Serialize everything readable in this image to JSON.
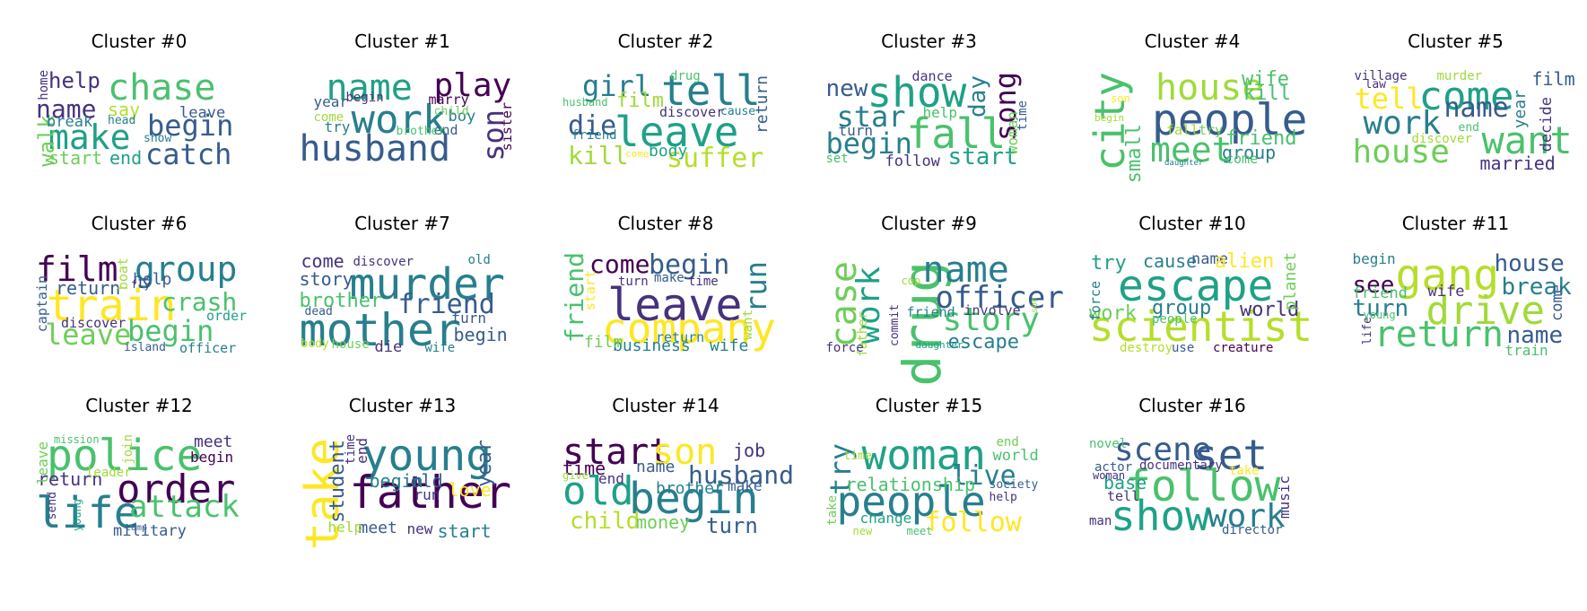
{
  "palette": [
    "#440154",
    "#46327e",
    "#365c8d",
    "#277f8e",
    "#1fa187",
    "#4ac16d",
    "#a0da39",
    "#fde725"
  ],
  "clusters": [
    {
      "title": "Cluster #0",
      "words": [
        {
          "t": "chase",
          "c": "#4ac16d"
        },
        {
          "t": "make",
          "c": "#1fa187"
        },
        {
          "t": "name",
          "c": "#46327e"
        },
        {
          "t": "begin",
          "c": "#365c8d"
        },
        {
          "t": "catch",
          "c": "#365c8d"
        },
        {
          "t": "help",
          "c": "#46327e"
        },
        {
          "t": "walk",
          "c": "#6ece58"
        },
        {
          "t": "say",
          "c": "#b5de2b"
        },
        {
          "t": "break",
          "c": "#277f8e"
        },
        {
          "t": "start",
          "c": "#6ece58"
        },
        {
          "t": "end",
          "c": "#1fa187"
        },
        {
          "t": "leave",
          "c": "#365c8d"
        },
        {
          "t": "head",
          "c": "#277f8e"
        },
        {
          "t": "show",
          "c": "#277f8e"
        },
        {
          "t": "home",
          "c": "#46327e"
        }
      ]
    },
    {
      "title": "Cluster #1",
      "words": [
        {
          "t": "name",
          "c": "#1fa187"
        },
        {
          "t": "work",
          "c": "#277f8e"
        },
        {
          "t": "husband",
          "c": "#365c8d"
        },
        {
          "t": "play",
          "c": "#440154"
        },
        {
          "t": "son",
          "c": "#46327e"
        },
        {
          "t": "marry",
          "c": "#440154"
        },
        {
          "t": "boy",
          "c": "#277f8e"
        },
        {
          "t": "year",
          "c": "#365c8d"
        },
        {
          "t": "come",
          "c": "#a0da39"
        },
        {
          "t": "try",
          "c": "#277f8e"
        },
        {
          "t": "begin",
          "c": "#46327e"
        },
        {
          "t": "end",
          "c": "#365c8d"
        },
        {
          "t": "child",
          "c": "#6ece58"
        },
        {
          "t": "brother",
          "c": "#4ac16d"
        },
        {
          "t": "sister",
          "c": "#440154"
        }
      ]
    },
    {
      "title": "Cluster #2",
      "words": [
        {
          "t": "tell",
          "c": "#277f8e"
        },
        {
          "t": "leave",
          "c": "#1fa187"
        },
        {
          "t": "girl",
          "c": "#277f8e"
        },
        {
          "t": "die",
          "c": "#365c8d"
        },
        {
          "t": "kill",
          "c": "#a0da39"
        },
        {
          "t": "suffer",
          "c": "#b5de2b"
        },
        {
          "t": "film",
          "c": "#a0da39"
        },
        {
          "t": "body",
          "c": "#1fa187"
        },
        {
          "t": "drug",
          "c": "#4ac16d"
        },
        {
          "t": "discover",
          "c": "#46327e"
        },
        {
          "t": "return",
          "c": "#365c8d"
        },
        {
          "t": "friend",
          "c": "#277f8e"
        },
        {
          "t": "husband",
          "c": "#4ac16d"
        },
        {
          "t": "cause",
          "c": "#277f8e"
        },
        {
          "t": "come",
          "c": "#fde725"
        }
      ]
    },
    {
      "title": "Cluster #3",
      "words": [
        {
          "t": "show",
          "c": "#1fa187"
        },
        {
          "t": "fall",
          "c": "#4ac16d"
        },
        {
          "t": "star",
          "c": "#277f8e"
        },
        {
          "t": "begin",
          "c": "#277f8e"
        },
        {
          "t": "start",
          "c": "#1fa187"
        },
        {
          "t": "song",
          "c": "#440154"
        },
        {
          "t": "day",
          "c": "#277f8e"
        },
        {
          "t": "new",
          "c": "#365c8d"
        },
        {
          "t": "follow",
          "c": "#46327e"
        },
        {
          "t": "turn",
          "c": "#365c8d"
        },
        {
          "t": "help",
          "c": "#4ac16d"
        },
        {
          "t": "dance",
          "c": "#46327e"
        },
        {
          "t": "set",
          "c": "#4ac16d"
        },
        {
          "t": "woman",
          "c": "#6ece58"
        },
        {
          "t": "time",
          "c": "#365c8d"
        }
      ]
    },
    {
      "title": "Cluster #4",
      "words": [
        {
          "t": "people",
          "c": "#365c8d"
        },
        {
          "t": "house",
          "c": "#a0da39"
        },
        {
          "t": "city",
          "c": "#4ac16d"
        },
        {
          "t": "meet",
          "c": "#4ac16d"
        },
        {
          "t": "wife",
          "c": "#4ac16d"
        },
        {
          "t": "kill",
          "c": "#4ac16d"
        },
        {
          "t": "friend",
          "c": "#4ac16d"
        },
        {
          "t": "group",
          "c": "#277f8e"
        },
        {
          "t": "small",
          "c": "#4ac16d"
        },
        {
          "t": "fall",
          "c": "#a0da39"
        },
        {
          "t": "try",
          "c": "#6ece58"
        },
        {
          "t": "come",
          "c": "#4ac16d"
        },
        {
          "t": "son",
          "c": "#fde725"
        },
        {
          "t": "begin",
          "c": "#a0da39"
        },
        {
          "t": "daughter",
          "c": "#277f8e"
        }
      ]
    },
    {
      "title": "Cluster #5",
      "words": [
        {
          "t": "come",
          "c": "#1fa187"
        },
        {
          "t": "want",
          "c": "#4ac16d"
        },
        {
          "t": "work",
          "c": "#277f8e"
        },
        {
          "t": "house",
          "c": "#6ece58"
        },
        {
          "t": "tell",
          "c": "#fde725"
        },
        {
          "t": "name",
          "c": "#365c8d"
        },
        {
          "t": "married",
          "c": "#46327e"
        },
        {
          "t": "film",
          "c": "#365c8d"
        },
        {
          "t": "year",
          "c": "#277f8e"
        },
        {
          "t": "decide",
          "c": "#46327e"
        },
        {
          "t": "village",
          "c": "#46327e"
        },
        {
          "t": "law",
          "c": "#46327e"
        },
        {
          "t": "murder",
          "c": "#a0da39"
        },
        {
          "t": "discover",
          "c": "#a0da39"
        },
        {
          "t": "end",
          "c": "#4ac16d"
        }
      ]
    },
    {
      "title": "Cluster #6",
      "words": [
        {
          "t": "film",
          "c": "#440154"
        },
        {
          "t": "group",
          "c": "#277f8e"
        },
        {
          "t": "train",
          "c": "#fde725"
        },
        {
          "t": "crash",
          "c": "#4ac16d"
        },
        {
          "t": "leave",
          "c": "#6ece58"
        },
        {
          "t": "begin",
          "c": "#4ac16d"
        },
        {
          "t": "return",
          "c": "#365c8d"
        },
        {
          "t": "help",
          "c": "#365c8d"
        },
        {
          "t": "discover",
          "c": "#46327e"
        },
        {
          "t": "boat",
          "c": "#a0da39"
        },
        {
          "t": "fly",
          "c": "#46327e"
        },
        {
          "t": "order",
          "c": "#1fa187"
        },
        {
          "t": "captain",
          "c": "#365c8d"
        },
        {
          "t": "island",
          "c": "#365c8d"
        },
        {
          "t": "officer",
          "c": "#277f8e"
        }
      ]
    },
    {
      "title": "Cluster #7",
      "words": [
        {
          "t": "murder",
          "c": "#277f8e"
        },
        {
          "t": "mother",
          "c": "#277f8e"
        },
        {
          "t": "friend",
          "c": "#365c8d"
        },
        {
          "t": "brother",
          "c": "#4ac16d"
        },
        {
          "t": "story",
          "c": "#365c8d"
        },
        {
          "t": "come",
          "c": "#46327e"
        },
        {
          "t": "discover",
          "c": "#46327e"
        },
        {
          "t": "begin",
          "c": "#365c8d"
        },
        {
          "t": "turn",
          "c": "#365c8d"
        },
        {
          "t": "old",
          "c": "#277f8e"
        },
        {
          "t": "dead",
          "c": "#365c8d"
        },
        {
          "t": "die",
          "c": "#46327e"
        },
        {
          "t": "body",
          "c": "#b5de2b"
        },
        {
          "t": "house",
          "c": "#6ece58"
        },
        {
          "t": "wife",
          "c": "#277f8e"
        }
      ]
    },
    {
      "title": "Cluster #8",
      "words": [
        {
          "t": "leave",
          "c": "#46327e"
        },
        {
          "t": "company",
          "c": "#fde725"
        },
        {
          "t": "begin",
          "c": "#365c8d"
        },
        {
          "t": "come",
          "c": "#440154"
        },
        {
          "t": "run",
          "c": "#277f8e"
        },
        {
          "t": "friend",
          "c": "#4ac16d"
        },
        {
          "t": "business",
          "c": "#277f8e"
        },
        {
          "t": "wife",
          "c": "#277f8e"
        },
        {
          "t": "film",
          "c": "#6ece58"
        },
        {
          "t": "return",
          "c": "#277f8e"
        },
        {
          "t": "start",
          "c": "#fde725"
        },
        {
          "t": "turn",
          "c": "#46327e"
        },
        {
          "t": "make",
          "c": "#365c8d"
        },
        {
          "t": "time",
          "c": "#46327e"
        },
        {
          "t": "want",
          "c": "#a0da39"
        }
      ]
    },
    {
      "title": "Cluster #9",
      "words": [
        {
          "t": "drug",
          "c": "#4ac16d"
        },
        {
          "t": "name",
          "c": "#277f8e"
        },
        {
          "t": "officer",
          "c": "#365c8d"
        },
        {
          "t": "story",
          "c": "#4ac16d"
        },
        {
          "t": "work",
          "c": "#1fa187"
        },
        {
          "t": "case",
          "c": "#6ece58"
        },
        {
          "t": "escape",
          "c": "#277f8e"
        },
        {
          "t": "involve",
          "c": "#46327e"
        },
        {
          "t": "friend",
          "c": "#277f8e"
        },
        {
          "t": "cop",
          "c": "#a0da39"
        },
        {
          "t": "commit",
          "c": "#46327e"
        },
        {
          "t": "father",
          "c": "#a0da39"
        },
        {
          "t": "force",
          "c": "#46327e"
        },
        {
          "t": "daughter",
          "c": "#1fa187"
        },
        {
          "t": "son",
          "c": "#a0da39"
        }
      ]
    },
    {
      "title": "Cluster #10",
      "words": [
        {
          "t": "escape",
          "c": "#1fa187"
        },
        {
          "t": "scientist",
          "c": "#b5de2b"
        },
        {
          "t": "group",
          "c": "#277f8e"
        },
        {
          "t": "world",
          "c": "#46327e"
        },
        {
          "t": "work",
          "c": "#6ece58"
        },
        {
          "t": "try",
          "c": "#1fa187"
        },
        {
          "t": "cause",
          "c": "#277f8e"
        },
        {
          "t": "name",
          "c": "#365c8d"
        },
        {
          "t": "alien",
          "c": "#fde725"
        },
        {
          "t": "planet",
          "c": "#6ece58"
        },
        {
          "t": "force",
          "c": "#277f8e"
        },
        {
          "t": "people",
          "c": "#4ac16d"
        },
        {
          "t": "destroy",
          "c": "#b5de2b"
        },
        {
          "t": "use",
          "c": "#365c8d"
        },
        {
          "t": "creature",
          "c": "#440154"
        }
      ]
    },
    {
      "title": "Cluster #11",
      "words": [
        {
          "t": "gang",
          "c": "#b5de2b"
        },
        {
          "t": "drive",
          "c": "#a0da39"
        },
        {
          "t": "return",
          "c": "#4ac16d"
        },
        {
          "t": "house",
          "c": "#365c8d"
        },
        {
          "t": "break",
          "c": "#277f8e"
        },
        {
          "t": "name",
          "c": "#365c8d"
        },
        {
          "t": "see",
          "c": "#440154"
        },
        {
          "t": "turn",
          "c": "#277f8e"
        },
        {
          "t": "friend",
          "c": "#4ac16d"
        },
        {
          "t": "wife",
          "c": "#46327e"
        },
        {
          "t": "begin",
          "c": "#277f8e"
        },
        {
          "t": "come",
          "c": "#365c8d"
        },
        {
          "t": "life",
          "c": "#46327e"
        },
        {
          "t": "young",
          "c": "#4ac16d"
        },
        {
          "t": "train",
          "c": "#4ac16d"
        }
      ]
    },
    {
      "title": "Cluster #12",
      "words": [
        {
          "t": "police",
          "c": "#4ac16d"
        },
        {
          "t": "order",
          "c": "#440154"
        },
        {
          "t": "life",
          "c": "#277f8e"
        },
        {
          "t": "attack",
          "c": "#4ac16d"
        },
        {
          "t": "return",
          "c": "#46327e"
        },
        {
          "t": "meet",
          "c": "#46327e"
        },
        {
          "t": "begin",
          "c": "#440154"
        },
        {
          "t": "military",
          "c": "#365c8d"
        },
        {
          "t": "leave",
          "c": "#6ece58"
        },
        {
          "t": "mission",
          "c": "#4ac16d"
        },
        {
          "t": "join",
          "c": "#a0da39"
        },
        {
          "t": "leader",
          "c": "#a0da39"
        },
        {
          "t": "send",
          "c": "#46327e"
        },
        {
          "t": "young",
          "c": "#1fa187"
        },
        {
          "t": "camp",
          "c": "#365c8d"
        }
      ]
    },
    {
      "title": "Cluster #13",
      "words": [
        {
          "t": "young",
          "c": "#277f8e"
        },
        {
          "t": "father",
          "c": "#440154"
        },
        {
          "t": "take",
          "c": "#fde725"
        },
        {
          "t": "student",
          "c": "#365c8d"
        },
        {
          "t": "begin",
          "c": "#277f8e"
        },
        {
          "t": "old",
          "c": "#365c8d"
        },
        {
          "t": "year",
          "c": "#365c8d"
        },
        {
          "t": "love",
          "c": "#fde725"
        },
        {
          "t": "run",
          "c": "#46327e"
        },
        {
          "t": "end",
          "c": "#46327e"
        },
        {
          "t": "time",
          "c": "#46327e"
        },
        {
          "t": "meet",
          "c": "#365c8d"
        },
        {
          "t": "new",
          "c": "#46327e"
        },
        {
          "t": "help",
          "c": "#a0da39"
        },
        {
          "t": "start",
          "c": "#277f8e"
        }
      ]
    },
    {
      "title": "Cluster #14",
      "words": [
        {
          "t": "start",
          "c": "#440154"
        },
        {
          "t": "son",
          "c": "#fde725"
        },
        {
          "t": "old",
          "c": "#1fa187"
        },
        {
          "t": "begin",
          "c": "#277f8e"
        },
        {
          "t": "husband",
          "c": "#365c8d"
        },
        {
          "t": "job",
          "c": "#46327e"
        },
        {
          "t": "time",
          "c": "#440154"
        },
        {
          "t": "name",
          "c": "#365c8d"
        },
        {
          "t": "brother",
          "c": "#277f8e"
        },
        {
          "t": "make",
          "c": "#365c8d"
        },
        {
          "t": "end",
          "c": "#46327e"
        },
        {
          "t": "give",
          "c": "#a0da39"
        },
        {
          "t": "child",
          "c": "#b5de2b"
        },
        {
          "t": "money",
          "c": "#6ece58"
        },
        {
          "t": "turn",
          "c": "#365c8d"
        }
      ]
    },
    {
      "title": "Cluster #15",
      "words": [
        {
          "t": "woman",
          "c": "#1fa187"
        },
        {
          "t": "people",
          "c": "#277f8e"
        },
        {
          "t": "live",
          "c": "#277f8e"
        },
        {
          "t": "follow",
          "c": "#fde725"
        },
        {
          "t": "try",
          "c": "#277f8e"
        },
        {
          "t": "relationship",
          "c": "#4ac16d"
        },
        {
          "t": "world",
          "c": "#4ac16d"
        },
        {
          "t": "end",
          "c": "#6ece58"
        },
        {
          "t": "time",
          "c": "#a0da39"
        },
        {
          "t": "take",
          "c": "#6ece58"
        },
        {
          "t": "change",
          "c": "#1fa187"
        },
        {
          "t": "society",
          "c": "#365c8d"
        },
        {
          "t": "help",
          "c": "#46327e"
        },
        {
          "t": "new",
          "c": "#a0da39"
        },
        {
          "t": "meet",
          "c": "#4ac16d"
        }
      ]
    },
    {
      "title": "Cluster #16",
      "words": [
        {
          "t": "scene",
          "c": "#365c8d"
        },
        {
          "t": "set",
          "c": "#365c8d"
        },
        {
          "t": "follow",
          "c": "#4ac16d"
        },
        {
          "t": "show",
          "c": "#1fa187"
        },
        {
          "t": "work",
          "c": "#277f8e"
        },
        {
          "t": "documentary",
          "c": "#46327e"
        },
        {
          "t": "base",
          "c": "#1fa187"
        },
        {
          "t": "tell",
          "c": "#46327e"
        },
        {
          "t": "actor",
          "c": "#365c8d"
        },
        {
          "t": "woman",
          "c": "#46327e"
        },
        {
          "t": "novel",
          "c": "#4ac16d"
        },
        {
          "t": "take",
          "c": "#fde725"
        },
        {
          "t": "music",
          "c": "#46327e"
        },
        {
          "t": "man",
          "c": "#46327e"
        },
        {
          "t": "director",
          "c": "#365c8d"
        }
      ]
    }
  ]
}
